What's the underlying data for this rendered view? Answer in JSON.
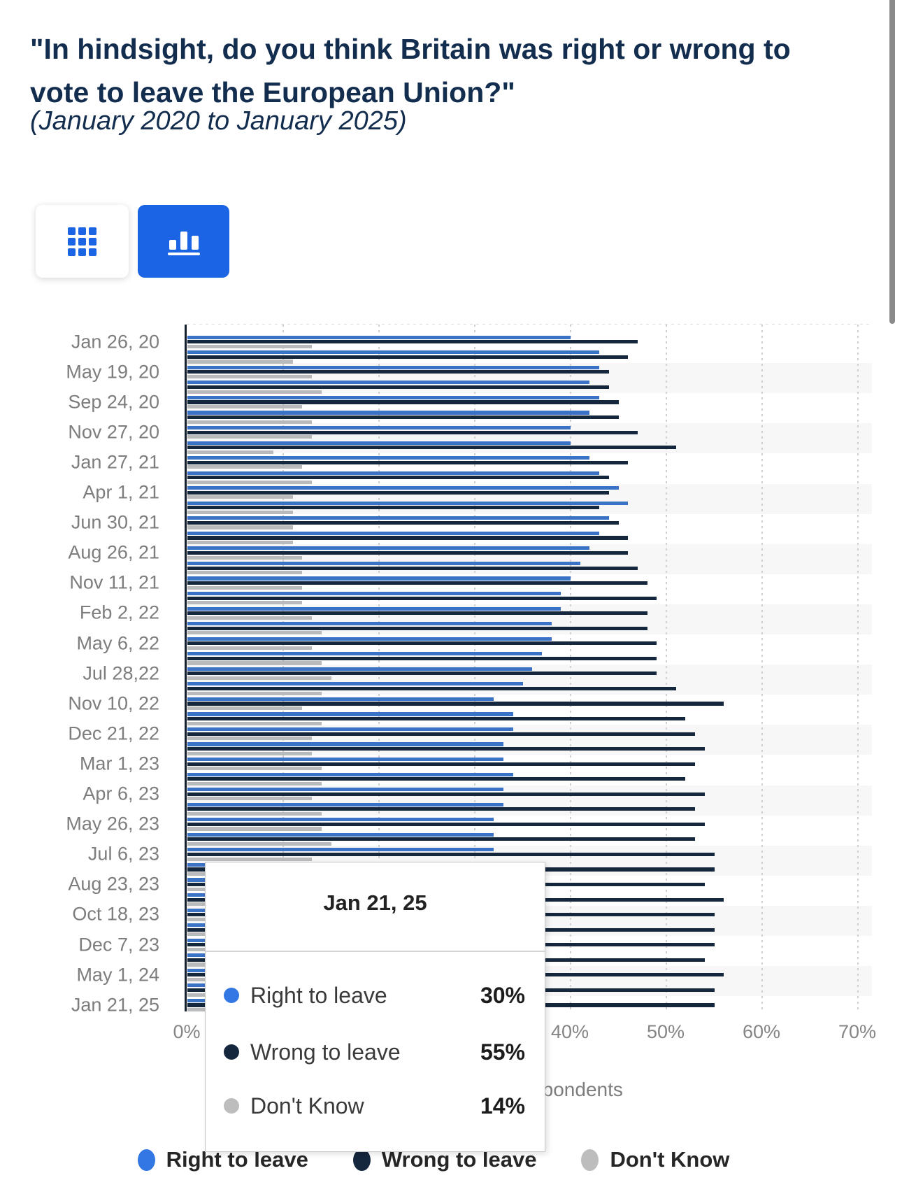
{
  "header": {
    "title": "\"In hindsight, do you think Britain was right or wrong to vote to leave the European Union?\"",
    "subtitle": "(January 2020 to January 2025)"
  },
  "toolbar": {
    "table_view_button": "table-view",
    "chart_view_button": "bar-chart-view",
    "active_view": "chart",
    "accent_color": "#1b64e4"
  },
  "chart_data": {
    "type": "bar",
    "orientation": "horizontal",
    "title": "\"In hindsight, do you think Britain was right or wrong to vote to leave the European Union?\"",
    "xlabel": "Share of respondents",
    "ylabel": "",
    "xlim": [
      0,
      70
    ],
    "x_ticks": [
      "0%",
      "10%",
      "20%",
      "30%",
      "40%",
      "50%",
      "60%",
      "70%"
    ],
    "grid": "vertical-dashed",
    "legend_position": "bottom",
    "categories": [
      "Jan 26, 20",
      "",
      "May 19, 20",
      "",
      "Sep 24, 20",
      "",
      "Nov 27, 20",
      "",
      "Jan 27, 21",
      "",
      "Apr 1, 21",
      "",
      "Jun 30, 21",
      "",
      "Aug 26, 21",
      "",
      "Nov 11, 21",
      "",
      "Feb 2, 22",
      "",
      "May 6, 22",
      "",
      "Jul 28,22",
      "",
      "Nov 10, 22",
      "",
      "Dec 21, 22",
      "",
      "Mar 1, 23",
      "",
      "Apr 6, 23",
      "",
      "May 26, 23",
      "",
      "Jul 6, 23",
      "",
      "Aug 23, 23",
      "",
      "Oct 18, 23",
      "",
      "Dec 7, 23",
      "",
      "May 1, 24",
      "",
      "Jan 21, 25"
    ],
    "series": [
      {
        "name": "Right to leave",
        "color": "#3a72c6",
        "values": [
          40,
          43,
          43,
          42,
          43,
          42,
          40,
          40,
          42,
          43,
          45,
          46,
          44,
          43,
          42,
          41,
          40,
          39,
          39,
          38,
          38,
          37,
          36,
          35,
          32,
          34,
          34,
          33,
          33,
          34,
          33,
          33,
          32,
          32,
          32,
          31,
          32,
          31,
          32,
          31,
          31,
          32,
          31,
          32,
          30
        ]
      },
      {
        "name": "Wrong to leave",
        "color": "#15273d",
        "values": [
          47,
          46,
          44,
          44,
          45,
          45,
          47,
          51,
          46,
          44,
          44,
          43,
          45,
          46,
          46,
          47,
          48,
          49,
          48,
          48,
          49,
          49,
          49,
          51,
          56,
          52,
          53,
          54,
          53,
          52,
          54,
          53,
          54,
          53,
          55,
          55,
          54,
          56,
          55,
          55,
          55,
          54,
          56,
          55,
          55
        ]
      },
      {
        "name": "Don't Know",
        "color": "#b9babc",
        "values": [
          13,
          11,
          13,
          14,
          12,
          13,
          13,
          9,
          12,
          13,
          11,
          11,
          11,
          11,
          12,
          12,
          12,
          12,
          13,
          14,
          13,
          14,
          15,
          14,
          12,
          14,
          13,
          13,
          14,
          14,
          13,
          14,
          14,
          15,
          13,
          14,
          14,
          13,
          13,
          14,
          14,
          14,
          13,
          13,
          14
        ]
      }
    ]
  },
  "tooltip": {
    "title": "Jan 21, 25",
    "rows": [
      {
        "label": "Right to leave",
        "value": "30%",
        "color": "#3277e4"
      },
      {
        "label": "Wrong to leave",
        "value": "55%",
        "color": "#15273d"
      },
      {
        "label": "Don't Know",
        "value": "14%",
        "color": "#bdbdbd"
      }
    ]
  },
  "legend": [
    {
      "label": "Right to leave",
      "color": "#3277e4"
    },
    {
      "label": "Wrong to leave",
      "color": "#15273d"
    },
    {
      "label": "Don't Know",
      "color": "#bdbdbd"
    }
  ],
  "colors": {
    "title_text": "#132d4f",
    "axis_text": "#7d7d7d",
    "band_stripe": "#f7f7f8",
    "axis_line": "#14202e"
  }
}
